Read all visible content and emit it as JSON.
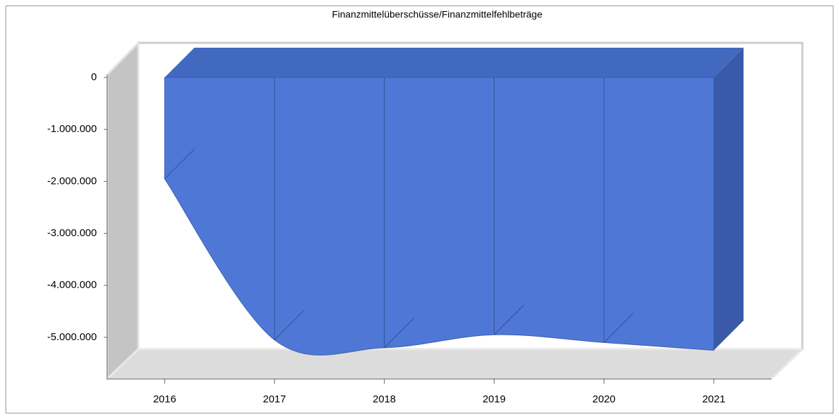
{
  "chart_data": {
    "type": "area3d",
    "title": "Finanzmittelüberschüsse/Finanzmittelfehlbeträge",
    "categories": [
      "2016",
      "2017",
      "2018",
      "2019",
      "2020",
      "2021"
    ],
    "values": [
      -1950000,
      -5050000,
      -5200000,
      -4950000,
      -5100000,
      -5250000
    ],
    "color": "#4f78d6",
    "ylim": [
      -5800000,
      0
    ],
    "yticks": [
      0,
      {
        "value": -1000000,
        "label": "-1.000.000"
      },
      {
        "value": -2000000,
        "label": "-2.000.000"
      },
      {
        "value": -3000000,
        "label": "-3.000.000"
      },
      {
        "value": -4000000,
        "label": "-4.000.000"
      },
      {
        "value": -5000000,
        "label": "-5.000.000"
      }
    ]
  }
}
